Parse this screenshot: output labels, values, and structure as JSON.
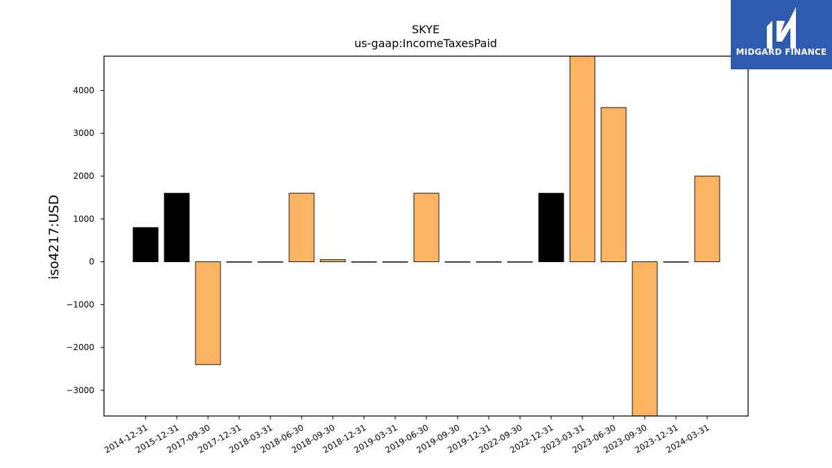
{
  "brand": {
    "name": "MIDGARD FINANCE",
    "bg_color": "#2d5bad"
  },
  "chart_data": {
    "type": "bar",
    "title": "SKYE",
    "subtitle": "us-gaap:IncomeTaxesPaid",
    "xlabel": "",
    "ylabel": "iso4217:USD",
    "categories": [
      "2014-12-31",
      "2015-12-31",
      "2017-09-30",
      "2017-12-31",
      "2018-03-31",
      "2018-06-30",
      "2018-09-30",
      "2018-12-31",
      "2019-03-31",
      "2019-06-30",
      "2019-09-30",
      "2019-12-31",
      "2022-09-30",
      "2022-12-31",
      "2023-03-31",
      "2023-06-30",
      "2023-09-30",
      "2023-12-31",
      "2024-03-31"
    ],
    "values": [
      800,
      1600,
      -2400,
      0,
      0,
      1600,
      50,
      0,
      0,
      1600,
      0,
      0,
      0,
      1600,
      4800,
      3600,
      -3600,
      0,
      2000
    ],
    "bar_colors": [
      "#000000",
      "#000000",
      "#fdb462",
      "#fdb462",
      "#fdb462",
      "#fdb462",
      "#fdb462",
      "#fdb462",
      "#fdb462",
      "#fdb462",
      "#fdb462",
      "#fdb462",
      "#fdb462",
      "#000000",
      "#fdb462",
      "#fdb462",
      "#fdb462",
      "#fdb462",
      "#fdb462"
    ],
    "ylim": [
      -3600,
      4800
    ],
    "yticks": [
      -3000,
      -2000,
      -1000,
      0,
      1000,
      2000,
      3000,
      4000
    ],
    "ytick_labels": [
      "−3000",
      "−2000",
      "−1000",
      "0",
      "1000",
      "2000",
      "3000",
      "4000"
    ],
    "grid": false,
    "legend": "none"
  }
}
